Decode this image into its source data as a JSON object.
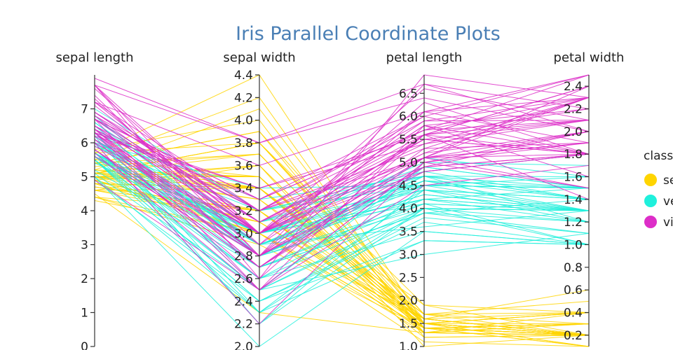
{
  "chart_data": {
    "type": "parallel_coordinates",
    "title": "Iris Parallel Coordinate Plots",
    "dimensions": [
      {
        "name": "sepal length",
        "range": [
          0,
          8
        ],
        "ticks": [
          0,
          1,
          2,
          3,
          4,
          5,
          6,
          7
        ],
        "tick_labels": [
          "0",
          "1",
          "2",
          "3",
          "4",
          "5",
          "6",
          "7"
        ]
      },
      {
        "name": "sepal width",
        "range": [
          2.0,
          4.4
        ],
        "ticks": [
          2.0,
          2.2,
          2.4,
          2.6,
          2.8,
          3.0,
          3.2,
          3.4,
          3.6,
          3.8,
          4.0,
          4.2,
          4.4
        ],
        "tick_labels": [
          "2.0",
          "2.2",
          "2.4",
          "2.6",
          "2.8",
          "3.0",
          "3.2",
          "3.4",
          "3.6",
          "3.8",
          "4.0",
          "4.2",
          "4.4"
        ]
      },
      {
        "name": "petal length",
        "range": [
          1.0,
          6.9
        ],
        "ticks": [
          1.0,
          1.5,
          2.0,
          2.5,
          3.0,
          3.5,
          4.0,
          4.5,
          5.0,
          5.5,
          6.0,
          6.5
        ],
        "tick_labels": [
          "1.0",
          "1.5",
          "2.0",
          "2.5",
          "3.0",
          "3.5",
          "4.0",
          "4.5",
          "5.0",
          "5.5",
          "6.0",
          "6.5"
        ]
      },
      {
        "name": "petal width",
        "range": [
          0.1,
          2.5
        ],
        "ticks": [
          0.2,
          0.4,
          0.6,
          0.8,
          1.0,
          1.2,
          1.4,
          1.6,
          1.8,
          2.0,
          2.2,
          2.4
        ],
        "tick_labels": [
          "0.2",
          "0.4",
          "0.6",
          "0.8",
          "1.0",
          "1.2",
          "1.4",
          "1.6",
          "1.8",
          "2.0",
          "2.2",
          "2.4"
        ]
      }
    ],
    "legend": {
      "title": "class",
      "placement": "right",
      "entries": [
        {
          "label": "setosa",
          "color": "#ffd500"
        },
        {
          "label": "versicolor",
          "color": "#1ff0dc"
        },
        {
          "label": "virginica",
          "color": "#dd2ec8"
        }
      ]
    },
    "series": [
      {
        "name": "setosa",
        "color": "#ffd500",
        "rows": [
          [
            5.1,
            3.5,
            1.4,
            0.2
          ],
          [
            4.9,
            3.0,
            1.4,
            0.2
          ],
          [
            4.7,
            3.2,
            1.3,
            0.2
          ],
          [
            4.6,
            3.1,
            1.5,
            0.2
          ],
          [
            5.0,
            3.6,
            1.4,
            0.2
          ],
          [
            5.4,
            3.9,
            1.7,
            0.4
          ],
          [
            4.6,
            3.4,
            1.4,
            0.3
          ],
          [
            5.0,
            3.4,
            1.5,
            0.2
          ],
          [
            4.4,
            2.9,
            1.4,
            0.2
          ],
          [
            4.9,
            3.1,
            1.5,
            0.1
          ],
          [
            5.4,
            3.7,
            1.5,
            0.2
          ],
          [
            4.8,
            3.4,
            1.6,
            0.2
          ],
          [
            4.8,
            3.0,
            1.4,
            0.1
          ],
          [
            4.3,
            3.0,
            1.1,
            0.1
          ],
          [
            5.8,
            4.0,
            1.2,
            0.2
          ],
          [
            5.7,
            4.4,
            1.5,
            0.4
          ],
          [
            5.4,
            3.9,
            1.3,
            0.4
          ],
          [
            5.1,
            3.5,
            1.4,
            0.3
          ],
          [
            5.7,
            3.8,
            1.7,
            0.3
          ],
          [
            5.1,
            3.8,
            1.5,
            0.3
          ],
          [
            5.4,
            3.4,
            1.7,
            0.2
          ],
          [
            5.1,
            3.7,
            1.5,
            0.4
          ],
          [
            4.6,
            3.6,
            1.0,
            0.2
          ],
          [
            5.1,
            3.3,
            1.7,
            0.5
          ],
          [
            4.8,
            3.4,
            1.9,
            0.2
          ],
          [
            5.0,
            3.0,
            1.6,
            0.2
          ],
          [
            5.0,
            3.4,
            1.6,
            0.4
          ],
          [
            5.2,
            3.5,
            1.5,
            0.2
          ],
          [
            5.2,
            3.4,
            1.4,
            0.2
          ],
          [
            4.7,
            3.2,
            1.6,
            0.2
          ],
          [
            4.8,
            3.1,
            1.6,
            0.2
          ],
          [
            5.4,
            3.4,
            1.5,
            0.4
          ],
          [
            5.2,
            4.1,
            1.5,
            0.1
          ],
          [
            5.5,
            4.2,
            1.4,
            0.2
          ],
          [
            4.9,
            3.1,
            1.5,
            0.2
          ],
          [
            5.0,
            3.2,
            1.2,
            0.2
          ],
          [
            5.5,
            3.5,
            1.3,
            0.2
          ],
          [
            4.9,
            3.6,
            1.4,
            0.1
          ],
          [
            4.4,
            3.0,
            1.3,
            0.2
          ],
          [
            5.1,
            3.4,
            1.5,
            0.2
          ],
          [
            5.0,
            3.5,
            1.3,
            0.3
          ],
          [
            4.5,
            2.3,
            1.3,
            0.3
          ],
          [
            4.4,
            3.2,
            1.3,
            0.2
          ],
          [
            5.0,
            3.5,
            1.6,
            0.6
          ],
          [
            5.1,
            3.8,
            1.9,
            0.4
          ],
          [
            4.8,
            3.0,
            1.4,
            0.3
          ],
          [
            5.1,
            3.8,
            1.6,
            0.2
          ],
          [
            4.6,
            3.2,
            1.4,
            0.2
          ],
          [
            5.3,
            3.7,
            1.5,
            0.2
          ],
          [
            5.0,
            3.3,
            1.4,
            0.2
          ]
        ]
      },
      {
        "name": "versicolor",
        "color": "#1ff0dc",
        "rows": [
          [
            7.0,
            3.2,
            4.7,
            1.4
          ],
          [
            6.4,
            3.2,
            4.5,
            1.5
          ],
          [
            6.9,
            3.1,
            4.9,
            1.5
          ],
          [
            5.5,
            2.3,
            4.0,
            1.3
          ],
          [
            6.5,
            2.8,
            4.6,
            1.5
          ],
          [
            5.7,
            2.8,
            4.5,
            1.3
          ],
          [
            6.3,
            3.3,
            4.7,
            1.6
          ],
          [
            4.9,
            2.4,
            3.3,
            1.0
          ],
          [
            6.6,
            2.9,
            4.6,
            1.3
          ],
          [
            5.2,
            2.7,
            3.9,
            1.4
          ],
          [
            5.0,
            2.0,
            3.5,
            1.0
          ],
          [
            5.9,
            3.0,
            4.2,
            1.5
          ],
          [
            6.0,
            2.2,
            4.0,
            1.0
          ],
          [
            6.1,
            2.9,
            4.7,
            1.4
          ],
          [
            5.6,
            2.9,
            3.6,
            1.3
          ],
          [
            6.7,
            3.1,
            4.4,
            1.4
          ],
          [
            5.6,
            3.0,
            4.5,
            1.5
          ],
          [
            5.8,
            2.7,
            4.1,
            1.0
          ],
          [
            6.2,
            2.2,
            4.5,
            1.5
          ],
          [
            5.6,
            2.5,
            3.9,
            1.1
          ],
          [
            5.9,
            3.2,
            4.8,
            1.8
          ],
          [
            6.1,
            2.8,
            4.0,
            1.3
          ],
          [
            6.3,
            2.5,
            4.9,
            1.5
          ],
          [
            6.1,
            2.8,
            4.7,
            1.2
          ],
          [
            6.4,
            2.9,
            4.3,
            1.3
          ],
          [
            6.6,
            3.0,
            4.4,
            1.4
          ],
          [
            6.8,
            2.8,
            4.8,
            1.4
          ],
          [
            6.7,
            3.0,
            5.0,
            1.7
          ],
          [
            6.0,
            2.9,
            4.5,
            1.5
          ],
          [
            5.7,
            2.6,
            3.5,
            1.0
          ],
          [
            5.5,
            2.4,
            3.8,
            1.1
          ],
          [
            5.5,
            2.4,
            3.7,
            1.0
          ],
          [
            5.8,
            2.7,
            3.9,
            1.2
          ],
          [
            6.0,
            2.7,
            5.1,
            1.6
          ],
          [
            5.4,
            3.0,
            4.5,
            1.5
          ],
          [
            6.0,
            3.4,
            4.5,
            1.6
          ],
          [
            6.7,
            3.1,
            4.7,
            1.5
          ],
          [
            6.3,
            2.3,
            4.4,
            1.3
          ],
          [
            5.6,
            3.0,
            4.1,
            1.3
          ],
          [
            5.5,
            2.5,
            4.0,
            1.3
          ],
          [
            5.5,
            2.6,
            4.4,
            1.2
          ],
          [
            6.1,
            3.0,
            4.6,
            1.4
          ],
          [
            5.8,
            2.6,
            4.0,
            1.2
          ],
          [
            5.0,
            2.3,
            3.3,
            1.0
          ],
          [
            5.6,
            2.7,
            4.2,
            1.3
          ],
          [
            5.7,
            3.0,
            4.2,
            1.2
          ],
          [
            5.7,
            2.9,
            4.2,
            1.3
          ],
          [
            6.2,
            2.9,
            4.3,
            1.3
          ],
          [
            5.1,
            2.5,
            3.0,
            1.1
          ],
          [
            5.7,
            2.8,
            4.1,
            1.3
          ]
        ]
      },
      {
        "name": "virginica",
        "color": "#dd2ec8",
        "rows": [
          [
            6.3,
            3.3,
            6.0,
            2.5
          ],
          [
            5.8,
            2.7,
            5.1,
            1.9
          ],
          [
            7.1,
            3.0,
            5.9,
            2.1
          ],
          [
            6.3,
            2.9,
            5.6,
            1.8
          ],
          [
            6.5,
            3.0,
            5.8,
            2.2
          ],
          [
            7.6,
            3.0,
            6.6,
            2.1
          ],
          [
            4.9,
            2.5,
            4.5,
            1.7
          ],
          [
            7.3,
            2.9,
            6.3,
            1.8
          ],
          [
            6.7,
            2.5,
            5.8,
            1.8
          ],
          [
            7.2,
            3.6,
            6.1,
            2.5
          ],
          [
            6.5,
            3.2,
            5.1,
            2.0
          ],
          [
            6.4,
            2.7,
            5.3,
            1.9
          ],
          [
            6.8,
            3.0,
            5.5,
            2.1
          ],
          [
            5.7,
            2.5,
            5.0,
            2.0
          ],
          [
            5.8,
            2.8,
            5.1,
            2.4
          ],
          [
            6.4,
            3.2,
            5.3,
            2.3
          ],
          [
            6.5,
            3.0,
            5.5,
            1.8
          ],
          [
            7.7,
            3.8,
            6.7,
            2.2
          ],
          [
            7.7,
            2.6,
            6.9,
            2.3
          ],
          [
            6.0,
            2.2,
            5.0,
            1.5
          ],
          [
            6.9,
            3.2,
            5.7,
            2.3
          ],
          [
            5.6,
            2.8,
            4.9,
            2.0
          ],
          [
            7.7,
            2.8,
            6.7,
            2.0
          ],
          [
            6.3,
            2.7,
            4.9,
            1.8
          ],
          [
            6.7,
            3.3,
            5.7,
            2.1
          ],
          [
            7.2,
            3.2,
            6.0,
            1.8
          ],
          [
            6.2,
            2.8,
            4.8,
            1.8
          ],
          [
            6.1,
            3.0,
            4.9,
            1.8
          ],
          [
            6.4,
            2.8,
            5.6,
            2.1
          ],
          [
            7.2,
            3.0,
            5.8,
            1.6
          ],
          [
            7.4,
            2.8,
            6.1,
            1.9
          ],
          [
            7.9,
            3.8,
            6.4,
            2.0
          ],
          [
            6.4,
            2.8,
            5.6,
            2.2
          ],
          [
            6.3,
            2.8,
            5.1,
            1.5
          ],
          [
            6.1,
            2.6,
            5.6,
            1.4
          ],
          [
            7.7,
            3.0,
            6.1,
            2.3
          ],
          [
            6.3,
            3.4,
            5.6,
            2.4
          ],
          [
            6.4,
            3.1,
            5.5,
            1.8
          ],
          [
            6.0,
            3.0,
            4.8,
            1.8
          ],
          [
            6.9,
            3.1,
            5.4,
            2.1
          ],
          [
            6.7,
            3.1,
            5.6,
            2.4
          ],
          [
            6.9,
            3.1,
            5.1,
            2.3
          ],
          [
            5.8,
            2.7,
            5.1,
            1.9
          ],
          [
            6.8,
            3.2,
            5.9,
            2.3
          ],
          [
            6.7,
            3.3,
            5.7,
            2.5
          ],
          [
            6.7,
            3.0,
            5.2,
            2.3
          ],
          [
            6.3,
            2.5,
            5.0,
            1.9
          ],
          [
            6.5,
            3.0,
            5.2,
            2.0
          ],
          [
            6.2,
            3.4,
            5.4,
            2.3
          ],
          [
            5.9,
            3.0,
            5.1,
            1.8
          ]
        ]
      }
    ]
  }
}
